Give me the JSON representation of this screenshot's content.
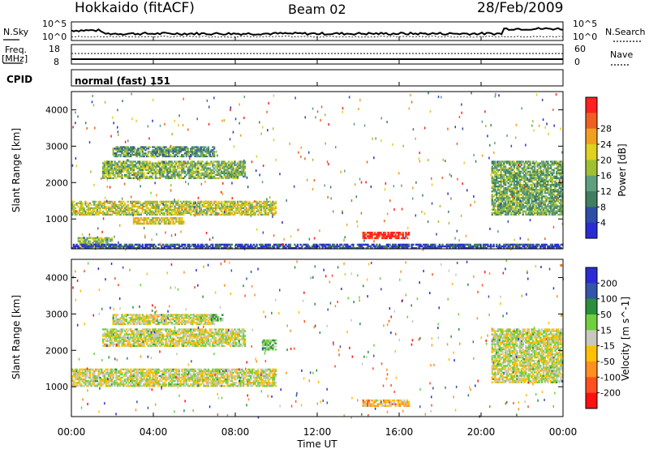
{
  "header": {
    "station": "Hokkaido (fitACF)",
    "beam": "Beam 02",
    "date": "28/Feb/2009"
  },
  "top_panels": {
    "nsky": {
      "label": "N.Sky",
      "ticks_left": [
        "10^5",
        "10^0"
      ],
      "ticks_right": [
        "10^5",
        "10^0"
      ],
      "right_label": "N.Search"
    },
    "freq": {
      "label_line1": "Freq.",
      "label_line2": "[MHz]",
      "ticks_left": [
        "18",
        "8"
      ],
      "ticks_right": [
        "60",
        "0"
      ],
      "right_label": "Nave"
    },
    "cpid": {
      "label": "CPID",
      "text": "normal (fast) 151"
    }
  },
  "x_axis": {
    "title": "Time UT",
    "ticks": [
      "00:00",
      "04:00",
      "08:00",
      "12:00",
      "16:00",
      "20:00",
      "00:00"
    ]
  },
  "colors": {
    "power": [
      "#2b2bd6",
      "#2e4da8",
      "#3f7f5f",
      "#5f9f7f",
      "#a0c030",
      "#e0d020",
      "#f0a020",
      "#f06020",
      "#ff2020"
    ],
    "velocity": [
      "#2b2bd6",
      "#3355aa",
      "#2a8f3a",
      "#6fcf3f",
      "#c8c8be",
      "#ffc000",
      "#ff9020",
      "#ff5020",
      "#ff1010"
    ]
  },
  "chart_data": [
    {
      "type": "heatmap",
      "panel": "power",
      "ylabel": "Slant Range [km]",
      "xlabel": "",
      "ylim": [
        180,
        4500
      ],
      "yticks": [
        "1000",
        "2000",
        "3000",
        "4000"
      ],
      "colorbar_label": "Power [dB]",
      "colorbar_ticks": [
        "4",
        "8",
        "12",
        "16",
        "20",
        "24",
        "28"
      ],
      "regions": [
        {
          "t0": 0.0,
          "t1": 10.0,
          "r0": 1100,
          "r1": 1500,
          "level": 0.55
        },
        {
          "t0": 1.5,
          "t1": 8.5,
          "r0": 2100,
          "r1": 2600,
          "level": 0.45
        },
        {
          "t0": 2.0,
          "t1": 7.0,
          "r0": 2700,
          "r1": 3000,
          "level": 0.35
        },
        {
          "t0": 3.0,
          "t1": 5.5,
          "r0": 850,
          "r1": 1050,
          "level": 0.6
        },
        {
          "t0": 0.3,
          "t1": 2.0,
          "r0": 200,
          "r1": 500,
          "level": 0.5
        },
        {
          "t0": 14.2,
          "t1": 16.5,
          "r0": 450,
          "r1": 650,
          "level": 0.95
        },
        {
          "t0": 20.5,
          "t1": 24.0,
          "r0": 1100,
          "r1": 2600,
          "level": 0.4
        },
        {
          "t0": 0.0,
          "t1": 24.0,
          "r0": 180,
          "r1": 320,
          "level": 0.15
        }
      ]
    },
    {
      "type": "heatmap",
      "panel": "velocity",
      "ylabel": "Slant Range [km]",
      "xlabel": "Time UT",
      "ylim": [
        180,
        4500
      ],
      "yticks": [
        "1000",
        "2000",
        "3000",
        "4000"
      ],
      "colorbar_label": "Velocity [m s^-1]",
      "colorbar_ticks": [
        "200",
        "100",
        "50",
        "15",
        "-15",
        "-50",
        "-100",
        "-200"
      ],
      "regions": [
        {
          "t0": 0.0,
          "t1": 10.0,
          "r0": 1000,
          "r1": 1500,
          "level": 0.5
        },
        {
          "t0": 1.5,
          "t1": 8.5,
          "r0": 2100,
          "r1": 2600,
          "level": 0.5
        },
        {
          "t0": 2.0,
          "t1": 7.0,
          "r0": 2700,
          "r1": 3000,
          "level": 0.5
        },
        {
          "t0": 6.8,
          "t1": 7.4,
          "r0": 2800,
          "r1": 3000,
          "level": 0.38
        },
        {
          "t0": 9.3,
          "t1": 10.0,
          "r0": 2000,
          "r1": 2300,
          "level": 0.38
        },
        {
          "t0": 14.2,
          "t1": 16.5,
          "r0": 450,
          "r1": 650,
          "level": 0.62
        },
        {
          "t0": 20.5,
          "t1": 24.0,
          "r0": 1100,
          "r1": 2600,
          "level": 0.5
        }
      ]
    }
  ]
}
